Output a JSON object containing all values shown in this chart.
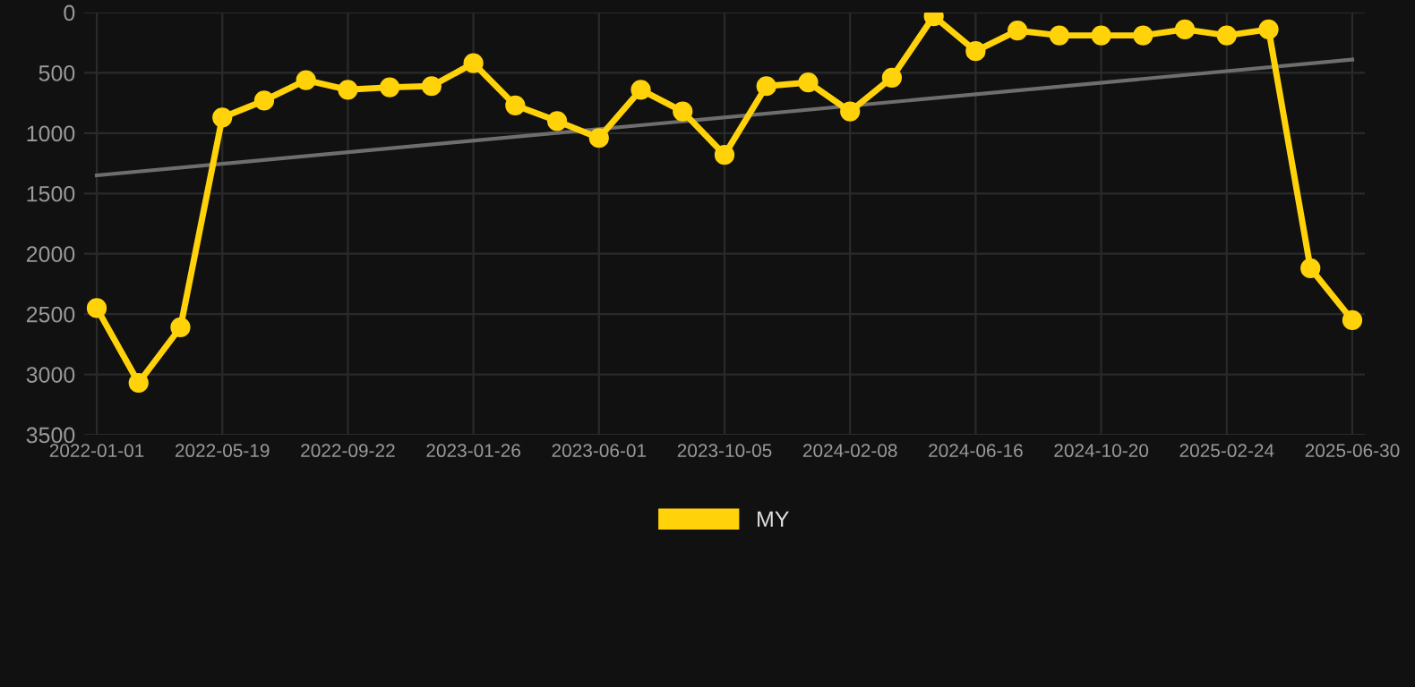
{
  "chart_data": {
    "type": "line",
    "categories": [
      "2022-01-01",
      null,
      null,
      "2022-05-19",
      null,
      null,
      "2022-09-22",
      null,
      null,
      "2023-01-26",
      null,
      null,
      "2023-06-01",
      null,
      null,
      "2023-10-05",
      null,
      null,
      "2024-02-08",
      null,
      null,
      "2024-06-16",
      null,
      null,
      "2024-10-20",
      null,
      null,
      "2025-02-24",
      null,
      null,
      "2025-06-30"
    ],
    "series": [
      {
        "name": "MY",
        "color": "#ffd20a",
        "values": [
          2450,
          3070,
          2610,
          870,
          730,
          560,
          640,
          620,
          610,
          420,
          770,
          900,
          1040,
          640,
          820,
          1180,
          610,
          580,
          820,
          540,
          30,
          320,
          150,
          190,
          190,
          190,
          140,
          190,
          140,
          2120,
          2550
        ]
      },
      {
        "type": "line",
        "color": "#6e6e6e",
        "values": [
          1350,
          null,
          null,
          null,
          null,
          null,
          null,
          null,
          null,
          null,
          null,
          null,
          null,
          null,
          null,
          null,
          null,
          null,
          null,
          null,
          null,
          null,
          null,
          null,
          null,
          null,
          null,
          null,
          null,
          null,
          390
        ],
        "marker": "none"
      }
    ],
    "ylim": [
      3500,
      0
    ],
    "yticks": [
      0,
      500,
      1000,
      1500,
      2000,
      2500,
      3000,
      3500
    ],
    "grid": true,
    "legend": "bottom",
    "marker": "circle",
    "line_style": "solid"
  }
}
